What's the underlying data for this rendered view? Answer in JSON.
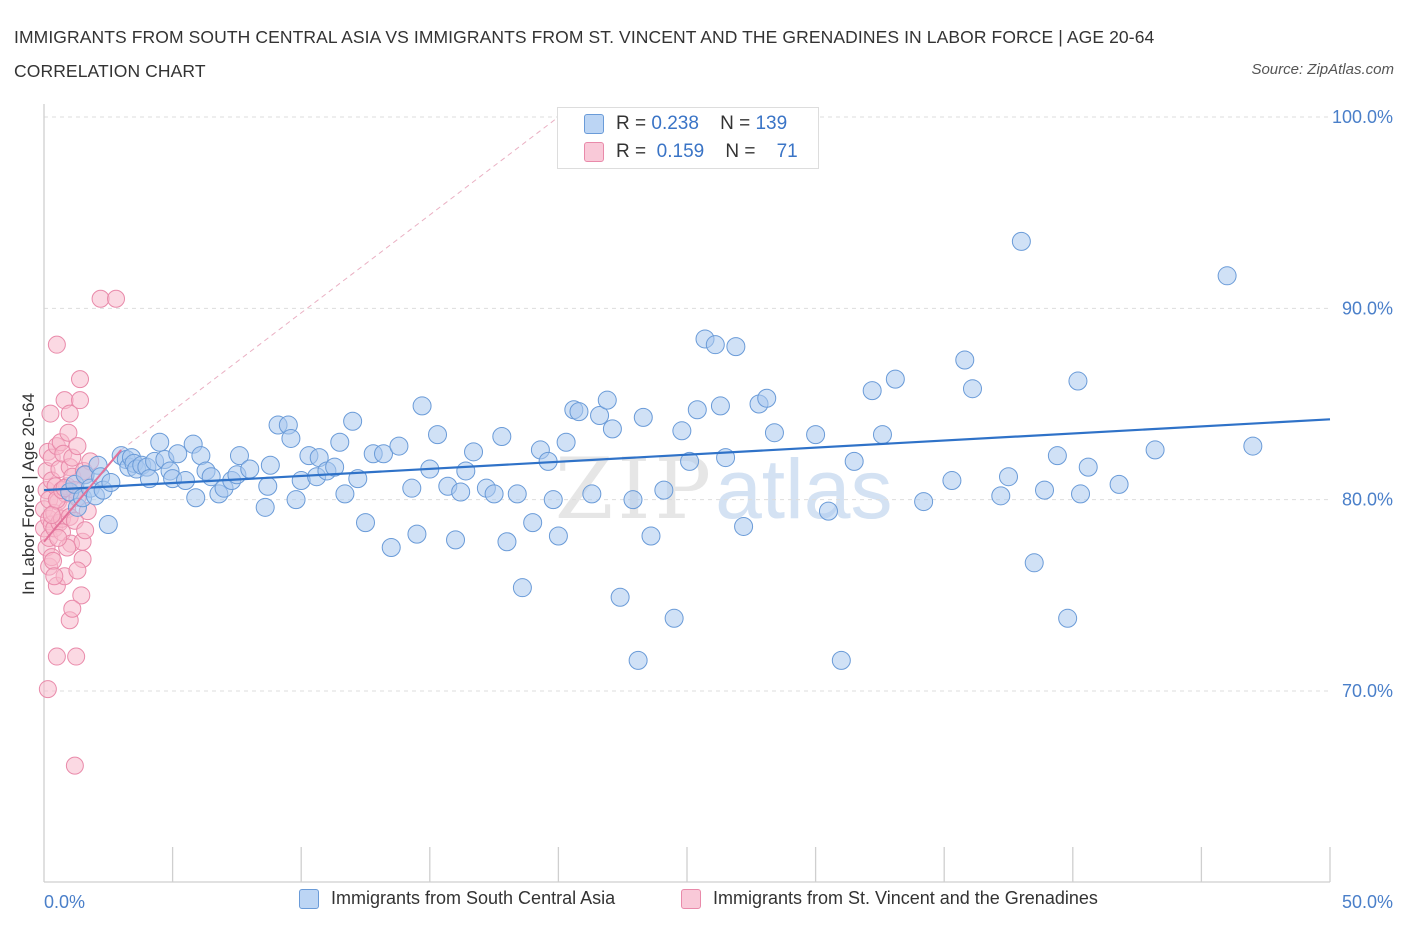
{
  "title": "IMMIGRANTS FROM SOUTH CENTRAL ASIA VS IMMIGRANTS FROM ST. VINCENT AND THE GRENADINES IN LABOR FORCE | AGE 20-64 CORRELATION CHART",
  "source": "Source: ZipAtlas.com",
  "watermark": {
    "zip": "ZIP",
    "atlas": "atlas"
  },
  "stats": {
    "row1": {
      "r_label": "R =",
      "r_value": "0.238",
      "n_label": "N =",
      "n_value": "139"
    },
    "row2": {
      "r_label": "R =",
      "r_value": "0.159",
      "n_label": "N =",
      "n_value": "71"
    }
  },
  "colors": {
    "blue_fill": "#a9c8ef",
    "blue_stroke": "#6a9bd8",
    "blue_line": "#2f72c8",
    "pink_fill": "#f7b9cc",
    "pink_stroke": "#e98aaa",
    "pink_line": "#e2729a",
    "grid": "#dddddd",
    "tick_text": "#4a7fc9"
  },
  "chart_data": {
    "type": "scatter",
    "ylabel": "In Labor Force | Age 20-64",
    "xlim": [
      0,
      50
    ],
    "ylim": [
      60,
      100
    ],
    "x_tick_labels": [
      "0.0%",
      "50.0%"
    ],
    "y_ticks": [
      70,
      80,
      90,
      100
    ],
    "y_tick_labels": [
      "70.0%",
      "80.0%",
      "90.0%",
      "100.0%"
    ],
    "grid": true,
    "legend_position": "bottom",
    "series": [
      {
        "name": "Immigrants from South Central Asia",
        "color": "#a9c8ef",
        "trend": {
          "x": [
            0,
            50
          ],
          "y": [
            80.5,
            84.2
          ]
        },
        "points": [
          [
            1.0,
            80.4
          ],
          [
            1.2,
            80.8
          ],
          [
            1.3,
            79.6
          ],
          [
            1.5,
            80.1
          ],
          [
            1.6,
            81.3
          ],
          [
            1.8,
            80.6
          ],
          [
            2.0,
            80.2
          ],
          [
            2.1,
            81.8
          ],
          [
            2.2,
            81.2
          ],
          [
            2.3,
            80.5
          ],
          [
            2.5,
            78.7
          ],
          [
            2.6,
            80.9
          ],
          [
            3.0,
            82.3
          ],
          [
            3.2,
            82.1
          ],
          [
            3.3,
            81.7
          ],
          [
            3.4,
            82.2
          ],
          [
            3.5,
            81.9
          ],
          [
            3.6,
            81.6
          ],
          [
            3.8,
            81.8
          ],
          [
            4.0,
            81.7
          ],
          [
            4.1,
            81.1
          ],
          [
            4.3,
            82.0
          ],
          [
            4.5,
            83.0
          ],
          [
            4.7,
            82.1
          ],
          [
            4.9,
            81.5
          ],
          [
            5.0,
            81.1
          ],
          [
            5.2,
            82.4
          ],
          [
            5.5,
            81.0
          ],
          [
            5.8,
            82.9
          ],
          [
            5.9,
            80.1
          ],
          [
            6.1,
            82.3
          ],
          [
            6.3,
            81.5
          ],
          [
            6.5,
            81.2
          ],
          [
            6.8,
            80.3
          ],
          [
            7.0,
            80.6
          ],
          [
            7.3,
            81.0
          ],
          [
            7.5,
            81.3
          ],
          [
            7.6,
            82.3
          ],
          [
            8.0,
            81.6
          ],
          [
            8.6,
            79.6
          ],
          [
            8.7,
            80.7
          ],
          [
            8.8,
            81.8
          ],
          [
            9.1,
            83.9
          ],
          [
            9.5,
            83.9
          ],
          [
            9.6,
            83.2
          ],
          [
            9.8,
            80.0
          ],
          [
            10.0,
            81.0
          ],
          [
            10.3,
            82.3
          ],
          [
            10.6,
            81.2
          ],
          [
            10.7,
            82.2
          ],
          [
            11.0,
            81.5
          ],
          [
            11.3,
            81.7
          ],
          [
            11.5,
            83.0
          ],
          [
            11.7,
            80.3
          ],
          [
            12.0,
            84.1
          ],
          [
            12.2,
            81.1
          ],
          [
            12.5,
            78.8
          ],
          [
            12.8,
            82.4
          ],
          [
            13.2,
            82.4
          ],
          [
            13.5,
            77.5
          ],
          [
            13.8,
            82.8
          ],
          [
            14.3,
            80.6
          ],
          [
            14.5,
            78.2
          ],
          [
            14.7,
            84.9
          ],
          [
            15.0,
            81.6
          ],
          [
            15.3,
            83.4
          ],
          [
            15.7,
            80.7
          ],
          [
            16.0,
            77.9
          ],
          [
            16.2,
            80.4
          ],
          [
            16.4,
            81.5
          ],
          [
            16.7,
            82.5
          ],
          [
            17.2,
            80.6
          ],
          [
            17.5,
            80.3
          ],
          [
            17.8,
            83.3
          ],
          [
            18.0,
            77.8
          ],
          [
            18.4,
            80.3
          ],
          [
            18.6,
            75.4
          ],
          [
            19.0,
            78.8
          ],
          [
            19.3,
            82.6
          ],
          [
            19.6,
            82.0
          ],
          [
            19.8,
            80.0
          ],
          [
            20.0,
            78.1
          ],
          [
            20.3,
            83.0
          ],
          [
            20.6,
            84.7
          ],
          [
            20.8,
            84.6
          ],
          [
            21.3,
            80.3
          ],
          [
            21.6,
            84.4
          ],
          [
            21.9,
            85.2
          ],
          [
            22.1,
            83.7
          ],
          [
            22.4,
            74.9
          ],
          [
            22.9,
            80.0
          ],
          [
            23.1,
            71.6
          ],
          [
            23.3,
            84.3
          ],
          [
            23.6,
            78.1
          ],
          [
            24.1,
            80.5
          ],
          [
            24.5,
            73.8
          ],
          [
            24.8,
            83.6
          ],
          [
            25.1,
            82.0
          ],
          [
            25.4,
            84.7
          ],
          [
            25.7,
            88.4
          ],
          [
            26.1,
            88.1
          ],
          [
            26.3,
            84.9
          ],
          [
            26.5,
            82.2
          ],
          [
            26.9,
            88.0
          ],
          [
            27.2,
            78.6
          ],
          [
            27.8,
            85.0
          ],
          [
            28.1,
            85.3
          ],
          [
            28.4,
            83.5
          ],
          [
            30.0,
            83.4
          ],
          [
            30.5,
            79.4
          ],
          [
            31.0,
            71.6
          ],
          [
            31.5,
            82.0
          ],
          [
            32.2,
            85.7
          ],
          [
            32.6,
            83.4
          ],
          [
            33.1,
            86.3
          ],
          [
            34.2,
            79.9
          ],
          [
            35.3,
            81.0
          ],
          [
            35.8,
            87.3
          ],
          [
            36.1,
            85.8
          ],
          [
            37.2,
            80.2
          ],
          [
            37.5,
            81.2
          ],
          [
            38.0,
            93.5
          ],
          [
            38.5,
            76.7
          ],
          [
            38.9,
            80.5
          ],
          [
            39.4,
            82.3
          ],
          [
            39.8,
            73.8
          ],
          [
            40.2,
            86.2
          ],
          [
            40.3,
            80.3
          ],
          [
            40.6,
            81.7
          ],
          [
            41.8,
            80.8
          ],
          [
            43.2,
            82.6
          ],
          [
            46.0,
            91.7
          ],
          [
            47.0,
            82.8
          ]
        ]
      },
      {
        "name": "Immigrants from St. Vincent and the Grenadines",
        "color": "#f7b9cc",
        "trend": {
          "x": [
            0,
            3.0
          ],
          "y": [
            77.8,
            82.6
          ]
        },
        "points": [
          [
            0.0,
            78.5
          ],
          [
            0.0,
            79.5
          ],
          [
            0.1,
            80.5
          ],
          [
            0.1,
            77.5
          ],
          [
            0.1,
            81.5
          ],
          [
            0.15,
            82.5
          ],
          [
            0.2,
            78.0
          ],
          [
            0.2,
            79.0
          ],
          [
            0.2,
            80.0
          ],
          [
            0.2,
            76.5
          ],
          [
            0.25,
            84.5
          ],
          [
            0.3,
            81.0
          ],
          [
            0.3,
            78.7
          ],
          [
            0.3,
            77.0
          ],
          [
            0.3,
            82.2
          ],
          [
            0.35,
            76.8
          ],
          [
            0.4,
            79.3
          ],
          [
            0.4,
            78.5
          ],
          [
            0.45,
            80.7
          ],
          [
            0.5,
            75.5
          ],
          [
            0.5,
            82.8
          ],
          [
            0.5,
            71.8
          ],
          [
            0.5,
            88.1
          ],
          [
            0.55,
            79.9
          ],
          [
            0.6,
            78.8
          ],
          [
            0.6,
            81.6
          ],
          [
            0.65,
            83.0
          ],
          [
            0.7,
            79.0
          ],
          [
            0.7,
            78.3
          ],
          [
            0.75,
            82.4
          ],
          [
            0.8,
            85.2
          ],
          [
            0.8,
            76.0
          ],
          [
            0.85,
            80.3
          ],
          [
            0.9,
            80.7
          ],
          [
            0.9,
            79.5
          ],
          [
            0.95,
            83.5
          ],
          [
            1.0,
            84.5
          ],
          [
            1.0,
            81.7
          ],
          [
            1.0,
            79.1
          ],
          [
            1.0,
            73.7
          ],
          [
            1.05,
            77.7
          ],
          [
            1.1,
            81.2
          ],
          [
            1.1,
            82.2
          ],
          [
            1.2,
            80.5
          ],
          [
            1.2,
            78.9
          ],
          [
            1.25,
            71.8
          ],
          [
            1.3,
            82.8
          ],
          [
            1.3,
            80.1
          ],
          [
            1.4,
            86.3
          ],
          [
            1.4,
            85.2
          ],
          [
            1.45,
            75.0
          ],
          [
            1.5,
            77.8
          ],
          [
            1.5,
            76.9
          ],
          [
            1.55,
            81.5
          ],
          [
            1.6,
            78.4
          ],
          [
            1.7,
            79.4
          ],
          [
            1.8,
            82.0
          ],
          [
            2.2,
            90.5
          ],
          [
            2.8,
            90.5
          ],
          [
            0.15,
            70.1
          ],
          [
            1.2,
            66.1
          ],
          [
            0.3,
            79.2
          ],
          [
            0.5,
            80.0
          ],
          [
            0.7,
            80.5
          ],
          [
            0.9,
            77.5
          ],
          [
            1.1,
            74.3
          ],
          [
            1.3,
            76.3
          ],
          [
            0.4,
            76.0
          ],
          [
            0.8,
            80.6
          ],
          [
            1.6,
            81.3
          ],
          [
            0.55,
            78.0
          ]
        ]
      }
    ]
  }
}
